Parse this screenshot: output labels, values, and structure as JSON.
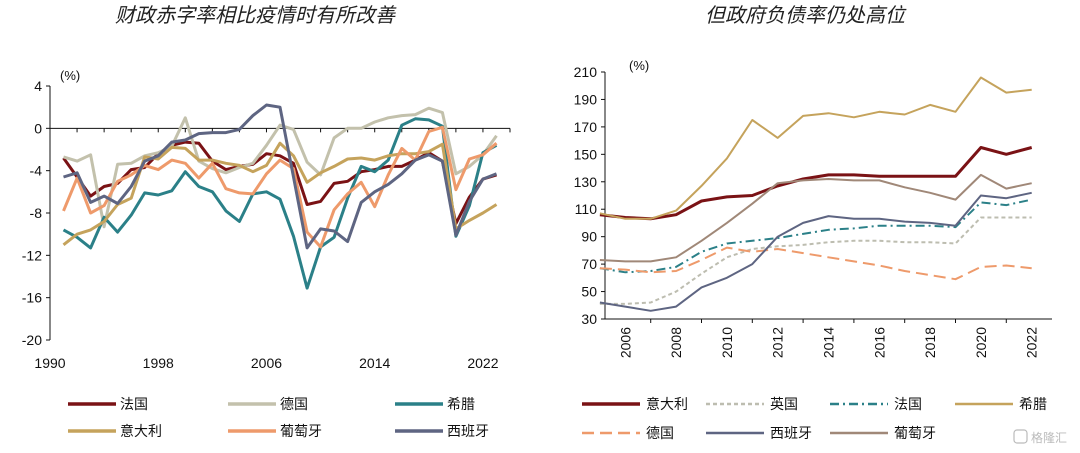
{
  "watermark": "格隆汇",
  "chart_data": [
    {
      "type": "line",
      "title": "财政赤字率相比疫情时有所改善",
      "unit": "(%)",
      "xlim": [
        1990,
        2024
      ],
      "ylim": [
        -20,
        4
      ],
      "yticks": [
        4,
        0,
        -4,
        -8,
        -12,
        -16,
        -20
      ],
      "xticks": [
        1990,
        1998,
        2006,
        2014,
        2022
      ],
      "x": [
        1991,
        1992,
        1993,
        1994,
        1995,
        1996,
        1997,
        1998,
        1999,
        2000,
        2001,
        2002,
        2003,
        2004,
        2005,
        2006,
        2007,
        2008,
        2009,
        2010,
        2011,
        2012,
        2013,
        2014,
        2015,
        2016,
        2017,
        2018,
        2019,
        2020,
        2021,
        2022,
        2023
      ],
      "series": [
        {
          "name": "法国",
          "color": "#7a1215",
          "width": 3,
          "dash": "",
          "values": [
            -2.8,
            -4.6,
            -6.4,
            -5.5,
            -5.2,
            -3.9,
            -3.7,
            -2.4,
            -1.6,
            -1.3,
            -1.4,
            -3.1,
            -3.9,
            -3.6,
            -3.4,
            -2.4,
            -2.6,
            -3.3,
            -7.2,
            -6.9,
            -5.2,
            -5.0,
            -4.1,
            -3.9,
            -3.6,
            -3.6,
            -3.0,
            -2.3,
            -3.1,
            -9.0,
            -6.5,
            -4.8,
            -4.4
          ]
        },
        {
          "name": "德国",
          "color": "#c3c1ac",
          "width": 3,
          "dash": "",
          "values": [
            -2.7,
            -3.1,
            -2.5,
            -9.3,
            -3.4,
            -3.3,
            -2.6,
            -2.3,
            -1.7,
            1.0,
            -3.1,
            -3.8,
            -4.2,
            -3.7,
            -3.3,
            -1.6,
            0.3,
            -0.1,
            -3.2,
            -4.4,
            -0.9,
            0.0,
            0.0,
            0.6,
            1.0,
            1.2,
            1.3,
            1.9,
            1.5,
            -4.3,
            -3.6,
            -2.5,
            -0.7
          ]
        },
        {
          "name": "希腊",
          "color": "#2b8088",
          "width": 3,
          "dash": "",
          "values": [
            -9.6,
            -10.3,
            -11.3,
            -8.4,
            -9.8,
            -8.2,
            -6.1,
            -6.3,
            -5.9,
            -4.1,
            -5.5,
            -6.0,
            -7.8,
            -8.8,
            -6.2,
            -6.0,
            -6.7,
            -10.2,
            -15.1,
            -11.2,
            -10.3,
            -6.6,
            -3.6,
            -4.1,
            -3.0,
            0.3,
            0.9,
            0.8,
            0.2,
            -10.2,
            -7.3,
            -2.3,
            -1.6
          ]
        },
        {
          "name": "意大利",
          "color": "#c5a35c",
          "width": 3,
          "dash": "",
          "values": [
            -11.0,
            -10.0,
            -9.6,
            -8.8,
            -7.2,
            -6.6,
            -2.7,
            -2.9,
            -1.8,
            -1.9,
            -3.0,
            -3.0,
            -3.3,
            -3.5,
            -4.1,
            -3.5,
            -1.4,
            -2.6,
            -5.1,
            -4.2,
            -3.6,
            -2.9,
            -2.8,
            -3.0,
            -2.6,
            -2.4,
            -2.4,
            -2.2,
            -1.5,
            -9.5,
            -8.7,
            -8.0,
            -7.2
          ]
        },
        {
          "name": "葡萄牙",
          "color": "#ee9a6b",
          "width": 3,
          "dash": "",
          "values": [
            -7.8,
            -4.7,
            -8.0,
            -7.3,
            -5.0,
            -4.4,
            -3.5,
            -3.9,
            -3.0,
            -3.3,
            -4.7,
            -3.3,
            -5.7,
            -6.1,
            -6.2,
            -4.3,
            -3.0,
            -3.8,
            -9.8,
            -11.2,
            -7.7,
            -6.2,
            -5.1,
            -7.4,
            -4.4,
            -1.9,
            -3.0,
            -0.3,
            0.1,
            -5.8,
            -2.9,
            -2.5,
            -1.4
          ]
        },
        {
          "name": "西班牙",
          "color": "#5e6582",
          "width": 3,
          "dash": "",
          "values": [
            -4.6,
            -4.2,
            -7.0,
            -6.4,
            -7.1,
            -5.5,
            -3.1,
            -2.6,
            -1.3,
            -1.1,
            -0.5,
            -0.4,
            -0.4,
            -0.1,
            1.2,
            2.2,
            2.0,
            -4.6,
            -11.3,
            -9.5,
            -9.7,
            -10.7,
            -7.0,
            -6.0,
            -5.3,
            -4.3,
            -3.0,
            -2.5,
            -3.1,
            -10.1,
            -6.9,
            -4.8,
            -4.3
          ]
        }
      ],
      "legend": {
        "position": "bottom",
        "columns": 3
      }
    },
    {
      "type": "line",
      "title": "但政府负债率仍处高位",
      "unit": "(%)",
      "xlim": [
        2005.2,
        2022.8
      ],
      "ylim": [
        30,
        210
      ],
      "yticks": [
        210,
        190,
        170,
        150,
        130,
        110,
        90,
        70,
        50,
        30
      ],
      "xticks": [
        2006,
        2008,
        2010,
        2012,
        2014,
        2016,
        2018,
        2020,
        2022
      ],
      "x": [
        2005,
        2006,
        2007,
        2008,
        2009,
        2010,
        2011,
        2012,
        2013,
        2014,
        2015,
        2016,
        2017,
        2018,
        2019,
        2020,
        2021,
        2022
      ],
      "series": [
        {
          "name": "意大利",
          "color": "#7a1215",
          "width": 3,
          "dash": "",
          "values": [
            106,
            104,
            103,
            106,
            116,
            119,
            120,
            127,
            132,
            135,
            135,
            134,
            134,
            134,
            134,
            155,
            150,
            155
          ]
        },
        {
          "name": "英国",
          "color": "#bdbdb0",
          "width": 2,
          "dash": "4,3",
          "values": [
            41,
            41,
            42,
            50,
            63,
            75,
            81,
            83,
            84,
            86,
            87,
            87,
            86,
            86,
            85,
            104,
            104,
            104
          ]
        },
        {
          "name": "法国",
          "color": "#2b8088",
          "width": 2,
          "dash": "9,4,2,4",
          "values": [
            67,
            64,
            65,
            68,
            79,
            85,
            87,
            89,
            92,
            95,
            96,
            98,
            98,
            98,
            97,
            115,
            113,
            117
          ]
        },
        {
          "name": "希腊",
          "color": "#c5a35c",
          "width": 2,
          "dash": "",
          "values": [
            107,
            103,
            103,
            109,
            127,
            147,
            175,
            162,
            178,
            180,
            177,
            181,
            179,
            186,
            181,
            206,
            195,
            197
          ]
        },
        {
          "name": "德国",
          "color": "#ee9a6b",
          "width": 2,
          "dash": "12,6",
          "values": [
            67,
            66,
            64,
            65,
            73,
            82,
            79,
            81,
            78,
            75,
            72,
            69,
            65,
            62,
            59,
            68,
            69,
            67
          ]
        },
        {
          "name": "西班牙",
          "color": "#5e6582",
          "width": 2,
          "dash": "",
          "values": [
            42,
            39,
            36,
            39,
            53,
            60,
            70,
            90,
            100,
            105,
            103,
            103,
            101,
            100,
            98,
            120,
            118,
            122
          ]
        },
        {
          "name": "葡萄牙",
          "color": "#a08878",
          "width": 2,
          "dash": "",
          "values": [
            73,
            72,
            72,
            75,
            87,
            100,
            114,
            129,
            131,
            132,
            131,
            131,
            126,
            122,
            117,
            135,
            125,
            129
          ]
        }
      ],
      "legend": {
        "position": "bottom",
        "columns": 4
      }
    }
  ]
}
